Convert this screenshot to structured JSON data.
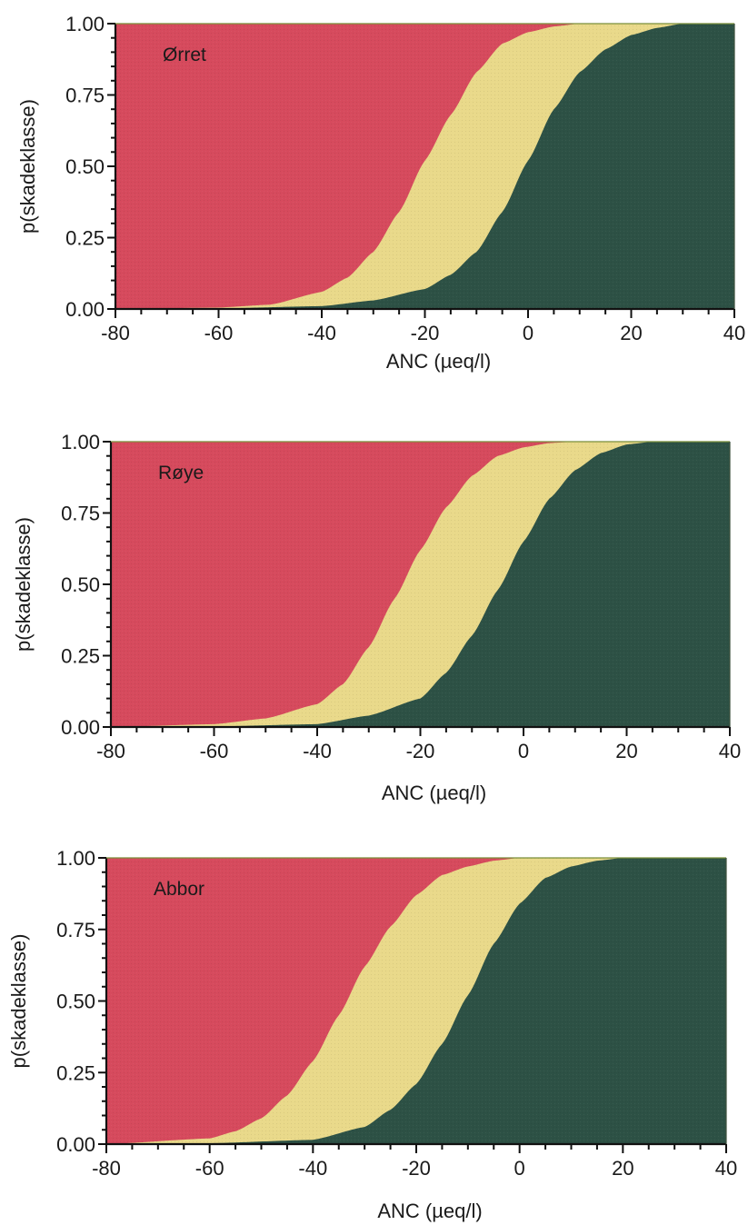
{
  "colors": {
    "high_damage": "#d64a5d",
    "moderate_damage": "#e9d98a",
    "low_damage": "#2d5145",
    "axis": "#111111",
    "text": "#1a1a1a"
  },
  "chart_data": [
    {
      "type": "area",
      "stacked": true,
      "title": "Ørret",
      "xlabel": "ANC (µeq/l)",
      "ylabel": "p(skadeklasse)",
      "xlim": [
        -80,
        40
      ],
      "ylim": [
        0,
        1
      ],
      "x_ticks": [
        -80,
        -60,
        -40,
        -20,
        0,
        20,
        40
      ],
      "y_ticks": [
        "0.00",
        "0.25",
        "0.50",
        "0.75",
        "1.00"
      ],
      "grid": false,
      "lower_boundary": {
        "description": "boundary between dark green (bottom) and yellow",
        "x": [
          -80,
          -60,
          -40,
          -30,
          -20,
          -15,
          -10,
          -5,
          0,
          5,
          10,
          15,
          20,
          25,
          30,
          40
        ],
        "y": [
          0.0,
          0.002,
          0.01,
          0.03,
          0.07,
          0.12,
          0.2,
          0.34,
          0.52,
          0.7,
          0.83,
          0.91,
          0.96,
          0.985,
          1.0,
          1.0
        ]
      },
      "upper_boundary": {
        "description": "boundary between yellow and red (top)",
        "x": [
          -80,
          -60,
          -50,
          -40,
          -35,
          -30,
          -25,
          -20,
          -15,
          -10,
          -5,
          0,
          5,
          10,
          15,
          20,
          40
        ],
        "y": [
          0.0,
          0.005,
          0.015,
          0.06,
          0.11,
          0.2,
          0.34,
          0.52,
          0.68,
          0.83,
          0.93,
          0.97,
          0.99,
          1.0,
          1.0,
          1.0,
          1.0
        ]
      }
    },
    {
      "type": "area",
      "stacked": true,
      "title": "Røye",
      "xlabel": "ANC (µeq/l)",
      "ylabel": "p(skadeklasse)",
      "xlim": [
        -80,
        40
      ],
      "ylim": [
        0,
        1
      ],
      "x_ticks": [
        -80,
        -60,
        -40,
        -20,
        0,
        20,
        40
      ],
      "y_ticks": [
        "0.00",
        "0.25",
        "0.50",
        "0.75",
        "1.00"
      ],
      "grid": false,
      "lower_boundary": {
        "description": "boundary between dark green (bottom) and yellow",
        "x": [
          -80,
          -60,
          -40,
          -30,
          -20,
          -15,
          -10,
          -5,
          0,
          5,
          10,
          15,
          20,
          25,
          30,
          40
        ],
        "y": [
          0.0,
          0.002,
          0.01,
          0.04,
          0.1,
          0.19,
          0.32,
          0.48,
          0.65,
          0.8,
          0.9,
          0.96,
          0.99,
          1.0,
          1.0,
          1.0
        ]
      },
      "upper_boundary": {
        "description": "boundary between yellow and red (top)",
        "x": [
          -80,
          -60,
          -50,
          -40,
          -35,
          -30,
          -25,
          -20,
          -15,
          -10,
          -5,
          0,
          5,
          10,
          15,
          20,
          40
        ],
        "y": [
          0.0,
          0.01,
          0.03,
          0.08,
          0.15,
          0.28,
          0.45,
          0.62,
          0.77,
          0.88,
          0.95,
          0.98,
          0.995,
          1.0,
          1.0,
          1.0,
          1.0
        ]
      }
    },
    {
      "type": "area",
      "stacked": true,
      "title": "Abbor",
      "xlabel": "ANC (µeq/l)",
      "ylabel": "p(skadeklasse)",
      "xlim": [
        -80,
        40
      ],
      "ylim": [
        0,
        1
      ],
      "x_ticks": [
        -80,
        -60,
        -40,
        -20,
        0,
        20,
        40
      ],
      "y_ticks": [
        "0.00",
        "0.25",
        "0.50",
        "0.75",
        "1.00"
      ],
      "grid": false,
      "lower_boundary": {
        "description": "boundary between dark green (bottom) and yellow",
        "x": [
          -80,
          -60,
          -40,
          -30,
          -25,
          -20,
          -15,
          -10,
          -5,
          0,
          5,
          10,
          15,
          20,
          30,
          40
        ],
        "y": [
          0.0,
          0.003,
          0.015,
          0.06,
          0.12,
          0.21,
          0.35,
          0.52,
          0.7,
          0.84,
          0.93,
          0.97,
          0.99,
          1.0,
          1.0,
          1.0
        ]
      },
      "upper_boundary": {
        "description": "boundary between yellow and red (top)",
        "x": [
          -80,
          -60,
          -55,
          -50,
          -45,
          -40,
          -35,
          -30,
          -25,
          -20,
          -15,
          -10,
          -5,
          0,
          10,
          20,
          40
        ],
        "y": [
          0.0,
          0.02,
          0.045,
          0.09,
          0.17,
          0.29,
          0.45,
          0.62,
          0.76,
          0.87,
          0.94,
          0.97,
          0.99,
          1.0,
          1.0,
          1.0,
          1.0
        ]
      }
    }
  ]
}
